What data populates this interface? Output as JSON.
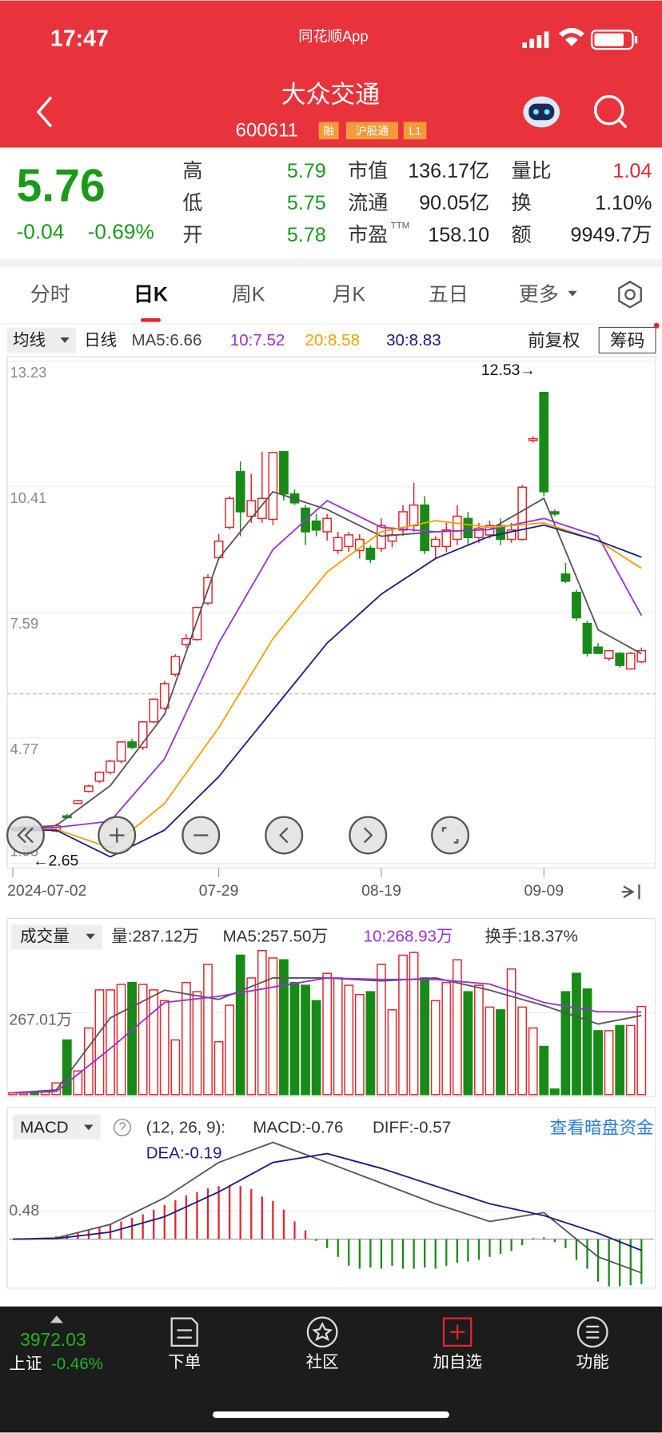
{
  "status": {
    "time": "17:47",
    "app": "同花顺App"
  },
  "header": {
    "title": "大众交通",
    "code": "600611",
    "tags": [
      "融",
      "沪股通",
      "L1"
    ]
  },
  "quote": {
    "price": 5.76,
    "change": "-0.04",
    "change_pct": "-0.69%",
    "left": [
      {
        "label": "高",
        "value": "5.79",
        "color": "#1a9a1a"
      },
      {
        "label": "低",
        "value": "5.75",
        "color": "#1a9a1a"
      },
      {
        "label": "开",
        "value": "5.78",
        "color": "#1a9a1a"
      }
    ],
    "mid": [
      {
        "label": "市值",
        "value": "136.17亿",
        "color": "#222"
      },
      {
        "label": "流通",
        "value": "90.05亿",
        "color": "#222"
      },
      {
        "label": "市盈",
        "sup": "TTM",
        "value": "158.10",
        "color": "#222"
      }
    ],
    "right": [
      {
        "label": "量比",
        "value": "1.04",
        "color": "#e3262e"
      },
      {
        "label": "换",
        "value": "1.10%",
        "color": "#222"
      },
      {
        "label": "额",
        "value": "9949.7万",
        "color": "#222"
      }
    ]
  },
  "tabs": {
    "items": [
      "分时",
      "日K",
      "周K",
      "月K",
      "五日",
      "更多"
    ],
    "active": 1
  },
  "toolbar": {
    "ma_select": "均线",
    "period": "日线",
    "adjust": "前复权",
    "chips": "筹码"
  },
  "annotations": {
    "high": "12.53→",
    "low": "←2.65"
  },
  "chart_data": [
    {
      "type": "candlestick",
      "up_color": "#e3262e",
      "down_color": "#178a17",
      "xlim": [
        0,
        58
      ],
      "xticks": [
        {
          "value": 0,
          "label": "2024-07-02"
        },
        {
          "value": 19,
          "label": "07-29"
        },
        {
          "value": 34,
          "label": "08-19"
        },
        {
          "value": 49,
          "label": "09-09"
        }
      ],
      "ylim": [
        1.95,
        13.23
      ],
      "yticks": [
        1.95,
        4.77,
        7.59,
        10.41,
        13.23
      ],
      "open": [
        2.72,
        2.74,
        2.77,
        2.76,
        2.68,
        3.02,
        3.3,
        3.57,
        3.8,
        4.0,
        4.25,
        4.68,
        4.56,
        5.13,
        5.44,
        6.2,
        6.87,
        6.98,
        7.8,
        8.82,
        9.5,
        10.75,
        9.75,
        9.7,
        9.68,
        11.2,
        10.25,
        9.93,
        9.64,
        9.4,
        8.98,
        9.07,
        8.98,
        9.03,
        9.03,
        9.19,
        9.44,
        9.54,
        10.0,
        9.07,
        9.07,
        9.23,
        9.7,
        9.27,
        9.33,
        9.54,
        9.23,
        9.23,
        11.45,
        12.53,
        9.85,
        8.45,
        8.04,
        7.34,
        6.81,
        6.56,
        6.67,
        6.32,
        6.48
      ],
      "high": [
        2.78,
        2.8,
        2.82,
        2.8,
        2.85,
        3.06,
        3.38,
        3.72,
        4.02,
        4.28,
        4.7,
        4.75,
        5.15,
        5.66,
        6.05,
        6.65,
        7.1,
        7.72,
        8.45,
        9.35,
        10.2,
        10.98,
        10.7,
        11.2,
        11.2,
        11.2,
        10.35,
        10.0,
        9.8,
        9.8,
        9.4,
        9.4,
        9.35,
        9.1,
        9.7,
        9.5,
        10.0,
        10.5,
        10.2,
        9.3,
        9.6,
        10.0,
        9.85,
        9.6,
        9.65,
        9.7,
        9.6,
        10.45,
        11.55,
        12.53,
        9.9,
        8.7,
        8.1,
        7.4,
        6.9,
        6.75,
        6.7,
        6.7,
        6.8
      ],
      "low": [
        2.68,
        2.7,
        2.72,
        2.7,
        2.65,
        2.96,
        3.28,
        3.55,
        3.76,
        3.95,
        4.2,
        4.52,
        4.5,
        5.1,
        5.4,
        6.15,
        6.8,
        6.95,
        7.75,
        8.78,
        9.45,
        9.3,
        9.6,
        9.6,
        9.55,
        10.1,
        10.0,
        9.1,
        9.3,
        9.2,
        8.9,
        8.95,
        8.8,
        8.7,
        8.95,
        9.05,
        9.3,
        9.4,
        8.9,
        8.8,
        8.95,
        9.1,
        9.1,
        9.15,
        9.25,
        9.1,
        9.15,
        9.2,
        11.4,
        10.2,
        9.75,
        8.25,
        7.4,
        6.6,
        6.65,
        6.5,
        6.35,
        6.3,
        6.45
      ],
      "close": [
        2.75,
        2.77,
        2.76,
        2.78,
        2.8,
        2.98,
        3.36,
        3.69,
        4.0,
        4.25,
        4.68,
        4.56,
        5.13,
        5.64,
        5.99,
        6.6,
        7.0,
        7.7,
        8.37,
        9.19,
        10.15,
        9.85,
        10.1,
        10.15,
        11.18,
        10.25,
        10.05,
        9.4,
        9.44,
        9.7,
        9.27,
        9.33,
        9.23,
        8.78,
        9.54,
        9.33,
        9.85,
        10.0,
        8.98,
        9.23,
        9.44,
        9.75,
        9.27,
        9.48,
        9.54,
        9.23,
        9.44,
        10.4,
        11.49,
        10.3,
        9.8,
        8.29,
        7.47,
        6.67,
        6.67,
        6.73,
        6.4,
        6.67,
        6.73
      ],
      "ma_x": [
        0,
        4,
        9,
        14,
        19,
        24,
        29,
        34,
        39,
        44,
        49,
        54,
        58
      ],
      "series": [
        {
          "name": "MA5:6.66",
          "color": "#555555",
          "values": [
            2.74,
            2.8,
            3.7,
            5.3,
            8.8,
            10.3,
            9.9,
            9.3,
            9.4,
            9.45,
            10.15,
            7.2,
            6.66
          ]
        },
        {
          "name": "10:7.52",
          "color": "#9b30d9",
          "values": [
            2.72,
            2.76,
            2.9,
            4.3,
            6.9,
            9.0,
            10.1,
            9.5,
            9.4,
            9.45,
            9.7,
            9.3,
            7.52
          ]
        },
        {
          "name": "20:8.58",
          "color": "#f5a000",
          "values": [
            2.7,
            2.72,
            2.3,
            3.3,
            5.0,
            7.0,
            8.5,
            9.4,
            9.65,
            9.5,
            9.6,
            9.2,
            8.58
          ]
        },
        {
          "name": "30:8.83",
          "color": "#1a1a8c",
          "values": [
            2.69,
            2.7,
            2.1,
            2.7,
            3.9,
            5.4,
            6.9,
            8.0,
            8.8,
            9.3,
            9.55,
            9.2,
            8.83
          ]
        }
      ]
    },
    {
      "type": "bar",
      "title": "成交量",
      "volume_label": "量:287.12万",
      "turnover": "换手:18.37%",
      "ylim": [
        0,
        470
      ],
      "yticks": [
        {
          "value": 267.01,
          "label": "267.01万"
        }
      ],
      "values": [
        6,
        5,
        5,
        8,
        38,
        178,
        77,
        217,
        341,
        341,
        359,
        365,
        359,
        341,
        306,
        178,
        365,
        335,
        424,
        172,
        291,
        454,
        380,
        469,
        445,
        439,
        365,
        356,
        306,
        395,
        380,
        356,
        326,
        335,
        424,
        276,
        454,
        463,
        380,
        306,
        365,
        439,
        335,
        356,
        285,
        276,
        409,
        285,
        217,
        157,
        18,
        335,
        395,
        344,
        208,
        208,
        225,
        225,
        287
      ],
      "ma_x": [
        0,
        4,
        9,
        14,
        19,
        24,
        29,
        34,
        39,
        44,
        49,
        54,
        58
      ],
      "series": [
        {
          "name": "MA5:257.50万",
          "color": "#555555",
          "values": [
            6,
            15,
            250,
            340,
            310,
            380,
            380,
            370,
            380,
            340,
            290,
            230,
            257.5
          ]
        },
        {
          "name": "10:268.93万",
          "color": "#9b30d9",
          "values": [
            6,
            10,
            150,
            300,
            320,
            350,
            380,
            375,
            375,
            360,
            300,
            270,
            268.93
          ]
        }
      ]
    },
    {
      "type": "bar",
      "title": "MACD",
      "params": "(12, 26, 9):",
      "value_label": "MACD:-0.76",
      "ylim": [
        -0.8,
        1.8
      ],
      "yticks": [
        0.48
      ],
      "values": [
        0,
        0.01,
        0.02,
        0.03,
        0.05,
        0.08,
        0.12,
        0.16,
        0.2,
        0.25,
        0.3,
        0.36,
        0.42,
        0.5,
        0.58,
        0.66,
        0.74,
        0.8,
        0.86,
        0.9,
        0.92,
        0.9,
        0.85,
        0.72,
        0.65,
        0.5,
        0.3,
        0.15,
        -0.03,
        -0.15,
        -0.3,
        -0.45,
        -0.5,
        -0.48,
        -0.5,
        -0.45,
        -0.5,
        -0.5,
        -0.48,
        -0.5,
        -0.45,
        -0.4,
        -0.38,
        -0.35,
        -0.3,
        -0.25,
        -0.2,
        -0.1,
        0.02,
        0.03,
        -0.05,
        -0.15,
        -0.35,
        -0.5,
        -0.72,
        -0.8,
        -0.8,
        -0.78,
        -0.76
      ],
      "ma_x": [
        0,
        4,
        9,
        14,
        19,
        24,
        29,
        34,
        39,
        44,
        49,
        54,
        58
      ],
      "series": [
        {
          "name": "DIFF:-0.57",
          "color": "#555555",
          "values": [
            0,
            0.02,
            0.25,
            0.7,
            1.3,
            1.64,
            1.3,
            0.95,
            0.6,
            0.3,
            0.45,
            -0.3,
            -0.57
          ]
        },
        {
          "name": "DEA:-0.19",
          "color": "#1a1a8c",
          "values": [
            0,
            0.01,
            0.12,
            0.38,
            0.8,
            1.3,
            1.45,
            1.2,
            0.9,
            0.6,
            0.4,
            0.1,
            -0.19
          ]
        }
      ],
      "link": "查看暗盘资金"
    }
  ],
  "bottom": {
    "index_value": "3972.03",
    "index_name": "上证",
    "index_pct": "-0.46%",
    "items": [
      "下单",
      "社区",
      "加自选",
      "功能"
    ]
  }
}
